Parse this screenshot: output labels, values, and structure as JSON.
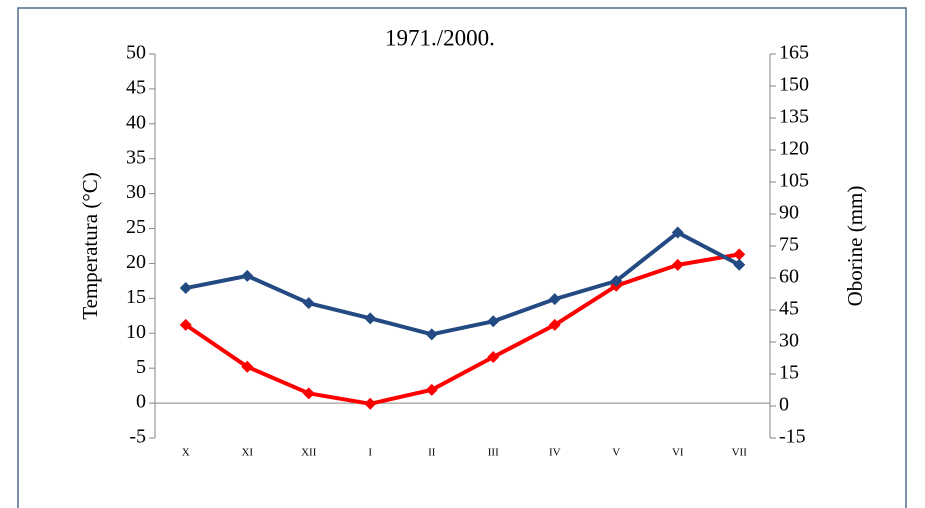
{
  "chart_data": {
    "type": "line",
    "title": "1971./2000.",
    "y_label": "Temperatura (°C)",
    "y2_label": "Oborine (mm)",
    "categories": [
      "X",
      "XI",
      "XII",
      "I",
      "II",
      "III",
      "IV",
      "V",
      "VI",
      "VII"
    ],
    "series": [
      {
        "color": "#ff0000",
        "values": [
          11.2,
          5.2,
          1.4,
          -0.1,
          1.9,
          6.6,
          11.2,
          16.8,
          19.8,
          21.3
        ]
      },
      {
        "color": "#234a82",
        "axis": "y2",
        "values": [
          55.3,
          61.0,
          48.2,
          41.1,
          33.6,
          39.7,
          50.1,
          58.6,
          81.3,
          66.2
        ]
      }
    ],
    "ylim": [
      -5,
      50
    ],
    "yticks": [
      -5,
      0,
      5,
      10,
      15,
      20,
      25,
      30,
      35,
      40,
      45,
      50
    ],
    "y2lim": [
      -15,
      165
    ],
    "y2ticks": [
      -15,
      0,
      15,
      30,
      45,
      60,
      75,
      90,
      105,
      120,
      135,
      150,
      165
    ]
  }
}
